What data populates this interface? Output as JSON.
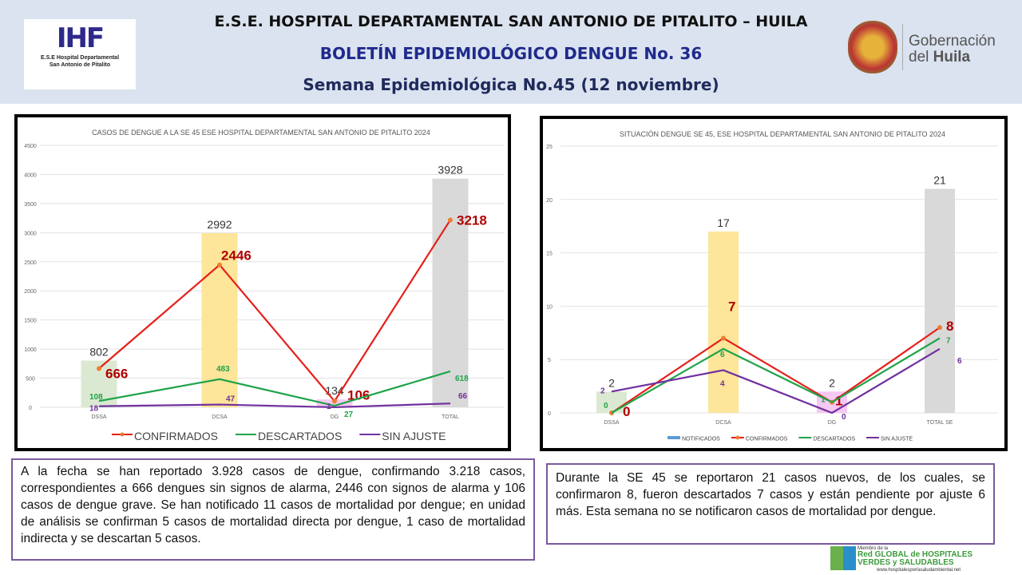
{
  "header": {
    "line1": "E.S.E. HOSPITAL DEPARTAMENTAL SAN ANTONIO DE PITALITO  –  HUILA",
    "line2": "BOLETÍN EPIDEMIOLÓGICO DENGUE No. 36",
    "line3": "Semana Epidemiológica No.45 (12 noviembre)",
    "logo_left_caption1": "E.S.E Hospital Departamental",
    "logo_left_caption2": "San Antonio de Pitalito",
    "logo_left_mark": "IHF",
    "gob_line1": "Gobernación",
    "gob_line2a": "del ",
    "gob_line2b": "Huila"
  },
  "chart_data": [
    {
      "type": "bar+line",
      "title": "CASOS DE DENGUE A LA SE 45 ESE HOSPITAL DEPARTAMENTAL SAN ANTONIO DE PITALITO 2024",
      "categories": [
        "DSSA",
        "DCSA",
        "DG",
        "TOTAL"
      ],
      "ylim": [
        0,
        4500
      ],
      "yticks": [
        0,
        500,
        1000,
        1500,
        2000,
        2500,
        3000,
        3500,
        4000,
        4500
      ],
      "grid": true,
      "legend": "bottom",
      "bars": {
        "values": [
          802,
          2992,
          134,
          3928
        ],
        "colors": [
          "#dbe9d2",
          "#fde59a",
          "#f6c8f2",
          "#d9d9d9"
        ]
      },
      "series": [
        {
          "name": "CONFIRMADOS",
          "values": [
            666,
            2446,
            106,
            3218
          ],
          "color": "#e5201b",
          "label_color": "#b00000"
        },
        {
          "name": "DESCARTADOS",
          "values": [
            108,
            483,
            27,
            618
          ],
          "color": "#1fa34a",
          "label_color": "#1fa34a"
        },
        {
          "name": "SIN AJUSTE",
          "values": [
            18,
            47,
            1,
            66
          ],
          "color": "#7030a0",
          "label_color": "#7030a0"
        }
      ]
    },
    {
      "type": "bar+line",
      "title": "SITUACIÓN DENGUE SE 45, ESE HOSPITAL DEPARTAMENTAL SAN ANTONIO DE PITALITO 2024",
      "categories": [
        "DSSA",
        "DCSA",
        "DG",
        "TOTAL SE"
      ],
      "ylim": [
        0,
        25
      ],
      "yticks": [
        0,
        5,
        10,
        15,
        20,
        25
      ],
      "grid": true,
      "legend": "bottom",
      "bars": {
        "name": "NOTIFICADOS",
        "values": [
          2,
          17,
          2,
          21
        ],
        "colors": [
          "#dbe9d2",
          "#fde59a",
          "#f6c8f2",
          "#d9d9d9"
        ],
        "legend_color": "#5b9bd5"
      },
      "series": [
        {
          "name": "CONFIRMADOS",
          "values": [
            0,
            7,
            1,
            8
          ],
          "color": "#e5201b",
          "label_color": "#b00000"
        },
        {
          "name": "DESCARTADOS",
          "values": [
            0,
            6,
            1,
            7
          ],
          "color": "#1fa34a",
          "label_color": "#1fa34a"
        },
        {
          "name": "SIN AJUSTE",
          "values": [
            2,
            4,
            0,
            6
          ],
          "color": "#7030a0",
          "label_color": "#7030a0"
        }
      ]
    }
  ],
  "text_left": "A la fecha se han reportado 3.928 casos de dengue, confirmando 3.218 casos, correspondientes a 666 dengues sin signos de alarma, 2446 con signos de alarma y 106 casos de dengue grave. Se han notificado 11 casos de mortalidad por dengue; en unidad de análisis se confirman 5 casos de mortalidad directa por dengue, 1 caso de mortalidad indirecta y se descartan 5 casos.",
  "text_right": "Durante la  SE 45 se reportaron 21 casos nuevos, de los cuales, se confirmaron 8, fueron descartados 7 casos y están pendiente por ajuste 6 más. Esta semana no se notificaron casos de mortalidad por dengue.",
  "footer_logo": {
    "line1": "Miembro de la",
    "line2": "Red GLOBAL de HOSPITALES",
    "line3": "VERDES y SALUDABLES",
    "url": "www.hospitalesporlasaludambiental.net"
  }
}
